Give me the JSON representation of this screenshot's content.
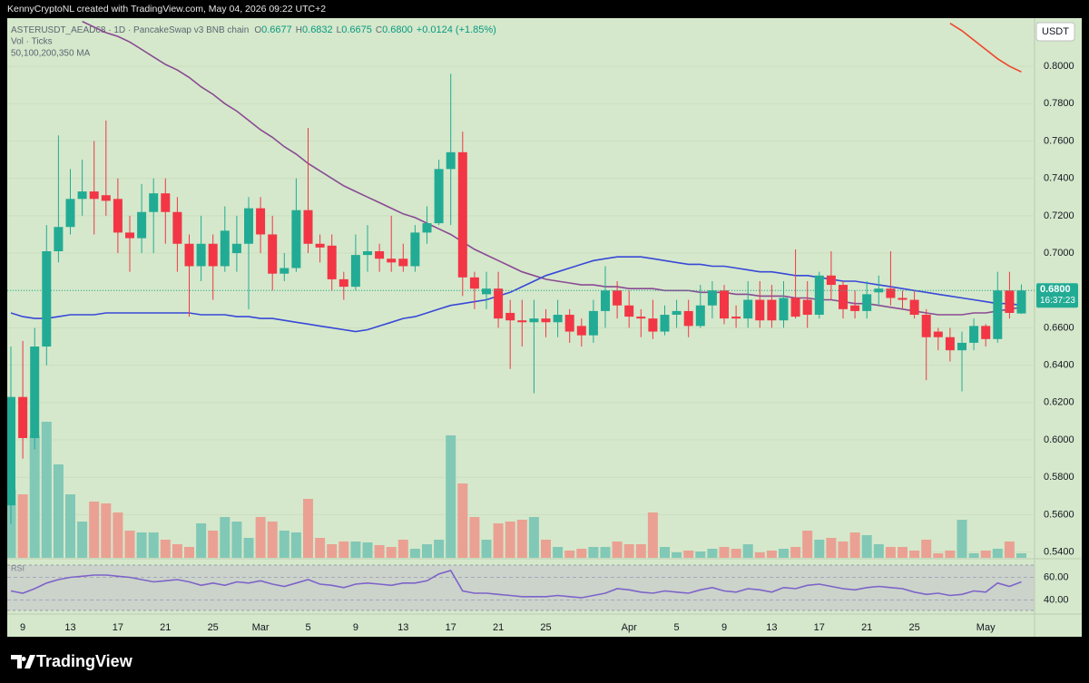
{
  "header": {
    "credit": "KennyCryptoNL created with TradingView.com, May 04, 2026 09:22 UTC+2",
    "symbol": "ASTERUSDT_AEAD68 · 1D · PancakeSwap v3 BNB chain",
    "ohlc": [
      [
        "O",
        "0.6677"
      ],
      [
        "H",
        "0.6832"
      ],
      [
        "L",
        "0.6675"
      ],
      [
        "C",
        "0.6800"
      ]
    ],
    "change": "+0.0124 (+1.85%)",
    "volume_label": "Vol · Ticks",
    "ma_label": "50,100,200,350 MA",
    "currency": "USDT"
  },
  "price_tag": {
    "price": "0.6800",
    "countdown": "16:37:23"
  },
  "footer": {
    "brand": "TradingView"
  },
  "chart_data": {
    "type": "candlestick",
    "up_color": "#22ab94",
    "down_color": "#f23645",
    "grid": true,
    "categories": [
      null,
      "9",
      null,
      null,
      null,
      "13",
      null,
      null,
      null,
      "17",
      null,
      null,
      null,
      "21",
      null,
      null,
      null,
      "25",
      null,
      null,
      null,
      "Mar",
      null,
      null,
      null,
      "5",
      null,
      null,
      null,
      "9",
      null,
      null,
      null,
      "13",
      null,
      null,
      null,
      "17",
      null,
      null,
      null,
      "21",
      null,
      null,
      null,
      "25",
      null,
      null,
      null,
      null,
      null,
      null,
      "Apr",
      null,
      null,
      null,
      "5",
      null,
      null,
      null,
      "9",
      null,
      null,
      null,
      "13",
      null,
      null,
      null,
      "17",
      null,
      null,
      null,
      "21",
      null,
      null,
      null,
      "25",
      null,
      null,
      null,
      null,
      null,
      "May",
      null,
      null,
      null
    ],
    "open": [
      0.565,
      0.623,
      0.601,
      0.65,
      0.701,
      0.714,
      0.729,
      0.733,
      0.731,
      0.729,
      0.711,
      0.708,
      0.722,
      0.732,
      0.722,
      0.705,
      0.693,
      0.705,
      0.693,
      0.7,
      0.705,
      0.724,
      0.71,
      0.689,
      0.692,
      0.723,
      0.705,
      0.704,
      0.686,
      0.682,
      0.699,
      0.701,
      0.697,
      0.697,
      0.693,
      0.711,
      0.716,
      0.745,
      0.754,
      0.687,
      0.678,
      0.681,
      0.668,
      0.664,
      0.663,
      0.665,
      0.663,
      0.667,
      0.661,
      0.656,
      0.669,
      0.68,
      0.672,
      0.666,
      0.665,
      0.658,
      0.667,
      0.669,
      0.661,
      0.672,
      0.68,
      0.666,
      0.665,
      0.675,
      0.675,
      0.664,
      0.676,
      0.675,
      0.667,
      0.688,
      0.683,
      0.672,
      0.669,
      0.679,
      0.681,
      0.676,
      0.675,
      0.667,
      0.658,
      0.655,
      0.648,
      0.652,
      0.661,
      0.654,
      0.68,
      0.6677
    ],
    "high": [
      0.65,
      0.653,
      0.66,
      0.715,
      0.763,
      0.745,
      0.75,
      0.76,
      0.771,
      0.74,
      0.72,
      0.737,
      0.74,
      0.74,
      0.73,
      0.71,
      0.72,
      0.71,
      0.725,
      0.72,
      0.73,
      0.73,
      0.72,
      0.7,
      0.74,
      0.767,
      0.71,
      0.71,
      0.69,
      0.71,
      0.715,
      0.705,
      0.72,
      0.705,
      0.715,
      0.725,
      0.75,
      0.796,
      0.765,
      0.69,
      0.69,
      0.69,
      0.675,
      0.675,
      0.675,
      0.67,
      0.675,
      0.67,
      0.665,
      0.675,
      0.693,
      0.685,
      0.68,
      0.67,
      0.675,
      0.672,
      0.675,
      0.675,
      0.683,
      0.685,
      0.683,
      0.672,
      0.685,
      0.685,
      0.683,
      0.685,
      0.702,
      0.685,
      0.69,
      0.701,
      0.685,
      0.68,
      0.685,
      0.688,
      0.701,
      0.68,
      0.68,
      0.67,
      0.66,
      0.66,
      0.658,
      0.665,
      0.662,
      0.69,
      0.69,
      0.6832
    ],
    "low": [
      0.555,
      0.59,
      0.595,
      0.64,
      0.695,
      0.71,
      0.72,
      0.71,
      0.72,
      0.7,
      0.69,
      0.7,
      0.7,
      0.705,
      0.69,
      0.666,
      0.685,
      0.675,
      0.69,
      0.69,
      0.67,
      0.7,
      0.68,
      0.685,
      0.69,
      0.7,
      0.695,
      0.68,
      0.675,
      0.68,
      0.69,
      0.69,
      0.69,
      0.69,
      0.69,
      0.705,
      0.715,
      0.715,
      0.677,
      0.67,
      0.67,
      0.66,
      0.638,
      0.65,
      0.625,
      0.655,
      0.655,
      0.652,
      0.65,
      0.652,
      0.66,
      0.665,
      0.66,
      0.655,
      0.654,
      0.656,
      0.66,
      0.655,
      0.66,
      0.665,
      0.662,
      0.66,
      0.66,
      0.66,
      0.66,
      0.66,
      0.665,
      0.66,
      0.665,
      0.675,
      0.665,
      0.665,
      0.665,
      0.672,
      0.672,
      0.67,
      0.665,
      0.632,
      0.648,
      0.642,
      0.626,
      0.648,
      0.65,
      0.652,
      0.665,
      0.6675
    ],
    "close": [
      0.623,
      0.601,
      0.65,
      0.701,
      0.714,
      0.729,
      0.733,
      0.729,
      0.728,
      0.711,
      0.708,
      0.722,
      0.732,
      0.722,
      0.705,
      0.693,
      0.705,
      0.693,
      0.712,
      0.705,
      0.724,
      0.71,
      0.689,
      0.692,
      0.723,
      0.705,
      0.703,
      0.686,
      0.682,
      0.699,
      0.701,
      0.697,
      0.695,
      0.693,
      0.711,
      0.716,
      0.745,
      0.754,
      0.687,
      0.681,
      0.681,
      0.665,
      0.664,
      0.663,
      0.665,
      0.663,
      0.667,
      0.658,
      0.656,
      0.669,
      0.68,
      0.672,
      0.666,
      0.665,
      0.658,
      0.667,
      0.669,
      0.661,
      0.672,
      0.68,
      0.665,
      0.665,
      0.675,
      0.664,
      0.664,
      0.676,
      0.666,
      0.667,
      0.688,
      0.683,
      0.67,
      0.669,
      0.678,
      0.681,
      0.676,
      0.675,
      0.667,
      0.655,
      0.655,
      0.648,
      0.652,
      0.661,
      0.654,
      0.68,
      0.668,
      0.68
    ],
    "ylim": [
      0.5369,
      0.8248
    ],
    "yticks": [
      {
        "value": 0.8,
        "label": "0.8000"
      },
      {
        "value": 0.78,
        "label": "0.7800"
      },
      {
        "value": 0.76,
        "label": "0.7600"
      },
      {
        "value": 0.74,
        "label": "0.7400"
      },
      {
        "value": 0.72,
        "label": "0.7200"
      },
      {
        "value": 0.7,
        "label": "0.7000"
      },
      {
        "value": 0.68,
        "label": "0.6800"
      },
      {
        "value": 0.66,
        "label": "0.6600"
      },
      {
        "value": 0.64,
        "label": "0.6400"
      },
      {
        "value": 0.62,
        "label": "0.6200"
      },
      {
        "value": 0.6,
        "label": "0.6000"
      },
      {
        "value": 0.58,
        "label": "0.5800"
      },
      {
        "value": 0.56,
        "label": "0.5600"
      },
      {
        "value": 0.54,
        "label": "0.5400"
      }
    ],
    "moving_averages": [
      {
        "color": "#8b4a94",
        "values": [
          null,
          null,
          null,
          null,
          null,
          null,
          0.824,
          0.821,
          0.818,
          0.816,
          0.813,
          0.809,
          0.805,
          0.801,
          0.798,
          0.794,
          0.789,
          0.785,
          0.78,
          0.776,
          0.771,
          0.766,
          0.762,
          0.757,
          0.753,
          0.748,
          0.744,
          0.74,
          0.736,
          0.733,
          0.73,
          0.727,
          0.724,
          0.721,
          0.719,
          0.716,
          0.713,
          0.71,
          0.706,
          0.702,
          0.699,
          0.696,
          0.693,
          0.69,
          0.688,
          0.686,
          0.685,
          0.684,
          0.683,
          0.683,
          0.682,
          0.682,
          0.681,
          0.681,
          0.681,
          0.68,
          0.68,
          0.68,
          0.679,
          0.679,
          0.679,
          0.678,
          0.678,
          0.677,
          0.677,
          0.677,
          0.676,
          0.676,
          0.675,
          0.675,
          0.674,
          0.673,
          0.673,
          0.672,
          0.671,
          0.67,
          0.669,
          0.668,
          0.667,
          0.667,
          0.667,
          0.668,
          0.668,
          0.669,
          0.67,
          0.671
        ]
      },
      {
        "color": "#3848d8",
        "values": [
          0.668,
          0.666,
          0.665,
          0.665,
          0.666,
          0.667,
          0.667,
          0.667,
          0.668,
          0.668,
          0.668,
          0.668,
          0.668,
          0.668,
          0.668,
          0.668,
          0.667,
          0.667,
          0.667,
          0.666,
          0.666,
          0.665,
          0.665,
          0.664,
          0.663,
          0.662,
          0.661,
          0.66,
          0.659,
          0.658,
          0.659,
          0.661,
          0.663,
          0.665,
          0.666,
          0.668,
          0.67,
          0.672,
          0.673,
          0.674,
          0.675,
          0.677,
          0.679,
          0.682,
          0.685,
          0.688,
          0.69,
          0.692,
          0.694,
          0.696,
          0.697,
          0.698,
          0.698,
          0.698,
          0.697,
          0.696,
          0.695,
          0.694,
          0.694,
          0.693,
          0.693,
          0.692,
          0.691,
          0.69,
          0.69,
          0.689,
          0.688,
          0.688,
          0.687,
          0.686,
          0.685,
          0.685,
          0.684,
          0.683,
          0.682,
          0.681,
          0.68,
          0.679,
          0.678,
          0.677,
          0.676,
          0.675,
          0.674,
          0.673,
          0.673,
          0.672
        ]
      },
      {
        "color": "#f0452e",
        "values": [
          null,
          null,
          null,
          null,
          null,
          null,
          null,
          null,
          null,
          null,
          null,
          null,
          null,
          null,
          null,
          null,
          null,
          null,
          null,
          null,
          null,
          null,
          null,
          null,
          null,
          null,
          null,
          null,
          null,
          null,
          null,
          null,
          null,
          null,
          null,
          null,
          null,
          null,
          null,
          null,
          null,
          null,
          null,
          null,
          null,
          null,
          null,
          null,
          null,
          null,
          null,
          null,
          null,
          null,
          null,
          null,
          null,
          null,
          null,
          null,
          null,
          null,
          null,
          null,
          null,
          null,
          null,
          null,
          null,
          null,
          null,
          null,
          null,
          null,
          null,
          null,
          null,
          null,
          null,
          0.823,
          0.819,
          0.814,
          0.809,
          0.804,
          0.8,
          0.797
        ]
      }
    ],
    "volume": {
      "up_color": "#82c8b6",
      "down_color": "#eaa193",
      "values": [
        75,
        70,
        135,
        150,
        103,
        70,
        40,
        62,
        60,
        50,
        30,
        28,
        28,
        20,
        15,
        12,
        38,
        30,
        45,
        40,
        22,
        45,
        40,
        30,
        28,
        65,
        22,
        15,
        18,
        18,
        17,
        14,
        12,
        20,
        10,
        15,
        20,
        135,
        82,
        45,
        20,
        38,
        40,
        42,
        45,
        20,
        12,
        8,
        10,
        12,
        12,
        18,
        15,
        15,
        50,
        12,
        6,
        8,
        7,
        10,
        12,
        10,
        15,
        6,
        8,
        10,
        12,
        30,
        20,
        22,
        18,
        28,
        25,
        15,
        12,
        12,
        8,
        20,
        5,
        8,
        42,
        5,
        8,
        10,
        18,
        5
      ]
    },
    "rsi": {
      "title": "RSI",
      "color": "#7e63c9",
      "ylim": [
        28.4,
        74.8
      ],
      "yticks": [
        {
          "value": 60,
          "label": "60.00"
        },
        {
          "value": 40,
          "label": "40.00"
        }
      ],
      "values": [
        48,
        46,
        50,
        55,
        58,
        60,
        61,
        62,
        62,
        61,
        60,
        58,
        56,
        57,
        58,
        56,
        53,
        55,
        53,
        56,
        55,
        57,
        54,
        52,
        55,
        58,
        54,
        53,
        51,
        54,
        55,
        54,
        53,
        55,
        55,
        57,
        63,
        66,
        48,
        46,
        46,
        45,
        44,
        43,
        43,
        43,
        44,
        43,
        42,
        44,
        46,
        50,
        49,
        47,
        46,
        48,
        47,
        46,
        49,
        51,
        48,
        47,
        50,
        49,
        47,
        51,
        50,
        53,
        54,
        52,
        50,
        49,
        51,
        52,
        51,
        50,
        47,
        45,
        46,
        44,
        45,
        48,
        47,
        55,
        52,
        56
      ]
    }
  }
}
